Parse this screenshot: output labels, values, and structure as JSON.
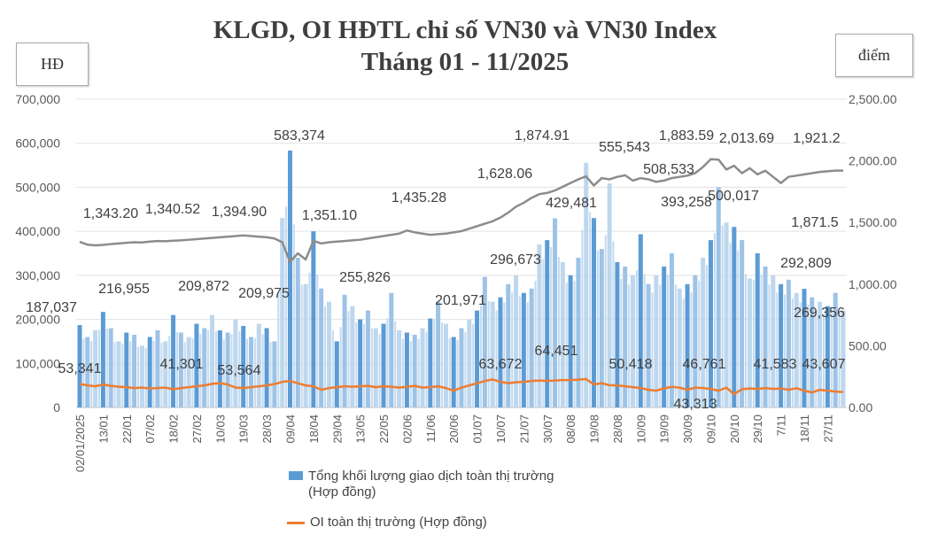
{
  "chart_data": {
    "type": "bar+line",
    "title": "KLGD, OI HĐTL chỉ số VN30 và VN30 Index",
    "subtitle": "Tháng 01 - 11/2025",
    "ylabel_left": "HĐ",
    "ylabel_right": "điểm",
    "ylim_left": [
      0,
      700000
    ],
    "ylim_right": [
      0,
      2500
    ],
    "left_ticks": [
      "0",
      "100,000",
      "200,000",
      "300,000",
      "400,000",
      "500,000",
      "600,000",
      "700,000"
    ],
    "right_ticks": [
      "0.00",
      "500.00",
      "1,000.00",
      "1,500.00",
      "2,000.00",
      "2,500.00"
    ],
    "grid": true,
    "legend_placement": "bottom",
    "x_tick_labels": [
      "02/01/2025",
      "13/01",
      "22/01",
      "07/02",
      "18/02",
      "27/02",
      "10/03",
      "19/03",
      "28/03",
      "09/04",
      "18/04",
      "29/04",
      "13/05",
      "22/05",
      "02/06",
      "11/06",
      "20/06",
      "01/07",
      "10/07",
      "21/07",
      "30/07",
      "08/08",
      "19/08",
      "28/08",
      "10/09",
      "19/09",
      "30/09",
      "09/10",
      "20/10",
      "29/10",
      "7/11",
      "18/11",
      "27/11"
    ],
    "series": [
      {
        "name": "Tổng khối lượng giao dịch toàn thị trường (Hợp đồng)",
        "type": "bar",
        "axis": "left",
        "color": "#5b9bd5",
        "values": [
          187037,
          160000,
          175000,
          216955,
          180000,
          150000,
          170000,
          165000,
          140000,
          160000,
          175000,
          150000,
          209872,
          170000,
          160000,
          190000,
          180000,
          209975,
          175000,
          170000,
          200000,
          185000,
          160000,
          190000,
          180000,
          150000,
          430000,
          583374,
          340000,
          280000,
          400000,
          270000,
          240000,
          150000,
          255826,
          230000,
          200000,
          220000,
          180000,
          190000,
          260000,
          175000,
          170000,
          165000,
          180000,
          201971,
          240000,
          190000,
          160000,
          180000,
          200000,
          220000,
          296673,
          240000,
          250000,
          280000,
          300000,
          260000,
          270000,
          370000,
          380000,
          429481,
          330000,
          300000,
          340000,
          555543,
          430000,
          360000,
          508533,
          330000,
          320000,
          300000,
          393258,
          280000,
          300000,
          320000,
          350000,
          270000,
          280000,
          300000,
          340000,
          380000,
          500017,
          420000,
          410000,
          380000,
          292809,
          350000,
          320000,
          300000,
          280000,
          290000,
          260000,
          269356,
          250000,
          240000,
          230000,
          260000,
          220000
        ]
      },
      {
        "name": "OI toàn thị trường (Hợp đồng)",
        "type": "line",
        "axis": "left",
        "color": "#ed7d31",
        "values": [
          53341,
          50000,
          48000,
          52000,
          49000,
          47000,
          46000,
          44000,
          45000,
          43000,
          44000,
          45000,
          41301,
          44000,
          46000,
          48000,
          50000,
          53564,
          55000,
          52000,
          45000,
          44000,
          46000,
          48000,
          50000,
          53000,
          58000,
          60000,
          55000,
          50000,
          48000,
          40000,
          44000,
          46000,
          48000,
          47000,
          48000,
          49000,
          46000,
          48000,
          47000,
          45000,
          47000,
          49000,
          45000,
          46000,
          48000,
          44000,
          38000,
          45000,
          50000,
          55000,
          60000,
          63672,
          58000,
          55000,
          57000,
          58000,
          60000,
          61000,
          60000,
          61000,
          62000,
          62000,
          63000,
          64451,
          52000,
          55000,
          50418,
          50000,
          48000,
          46000,
          44000,
          40000,
          38000,
          43313,
          46761,
          45000,
          40000,
          45000,
          44000,
          42000,
          38000,
          45000,
          30000,
          41583,
          43000,
          42000,
          44000,
          42000,
          43000,
          40000,
          43607,
          38000,
          34000,
          40000,
          38000,
          36000,
          35000
        ]
      },
      {
        "name": "VN30 Index",
        "type": "line",
        "axis": "right",
        "color": "#8c8c8c",
        "values": [
          1343,
          1320,
          1315,
          1318,
          1325,
          1330,
          1335,
          1340,
          1338,
          1345,
          1350,
          1348,
          1352,
          1355,
          1360,
          1365,
          1370,
          1375,
          1380,
          1385,
          1390,
          1395,
          1390,
          1385,
          1380,
          1370,
          1340,
          1180,
          1250,
          1200,
          1351,
          1330,
          1340,
          1345,
          1350,
          1355,
          1360,
          1370,
          1380,
          1390,
          1400,
          1410,
          1435,
          1420,
          1410,
          1400,
          1405,
          1410,
          1420,
          1430,
          1450,
          1470,
          1490,
          1510,
          1540,
          1580,
          1628,
          1660,
          1700,
          1730,
          1740,
          1760,
          1790,
          1820,
          1850,
          1874,
          1800,
          1860,
          1850,
          1870,
          1883,
          1840,
          1860,
          1850,
          1830,
          1840,
          1860,
          1870,
          1880,
          1900,
          1950,
          2013,
          2010,
          1930,
          1960,
          1900,
          1940,
          1890,
          1920,
          1870,
          1820,
          1871,
          1880,
          1890,
          1900,
          1910,
          1915,
          1921,
          1921
        ]
      }
    ],
    "annotations": {
      "index": [
        "1,343.20",
        "1,340.52",
        "1,394.90",
        "1,351.10",
        "1,435.28",
        "1,628.06",
        "1,874.91",
        "1,883.59",
        "2,013.69",
        "1,921.2",
        "1,871.5"
      ],
      "volume": [
        "583,374",
        "216,955",
        "209,872",
        "209,975",
        "187,037",
        "255,826",
        "201,971",
        "296,673",
        "429,481",
        "555,543",
        "508,533",
        "393,258",
        "500,017",
        "292,809",
        "269,356"
      ],
      "oi": [
        "53,341",
        "41,301",
        "53,564",
        "63,672",
        "64,451",
        "50,418",
        "46,761",
        "43,313",
        "41,583",
        "43,607"
      ]
    }
  },
  "legend": {
    "bar_line1": "Tổng khối lượng giao dịch toàn thị trường",
    "bar_line2": "(Hợp đồng)",
    "oi": "OI toàn thị trường (Hợp đồng)"
  }
}
